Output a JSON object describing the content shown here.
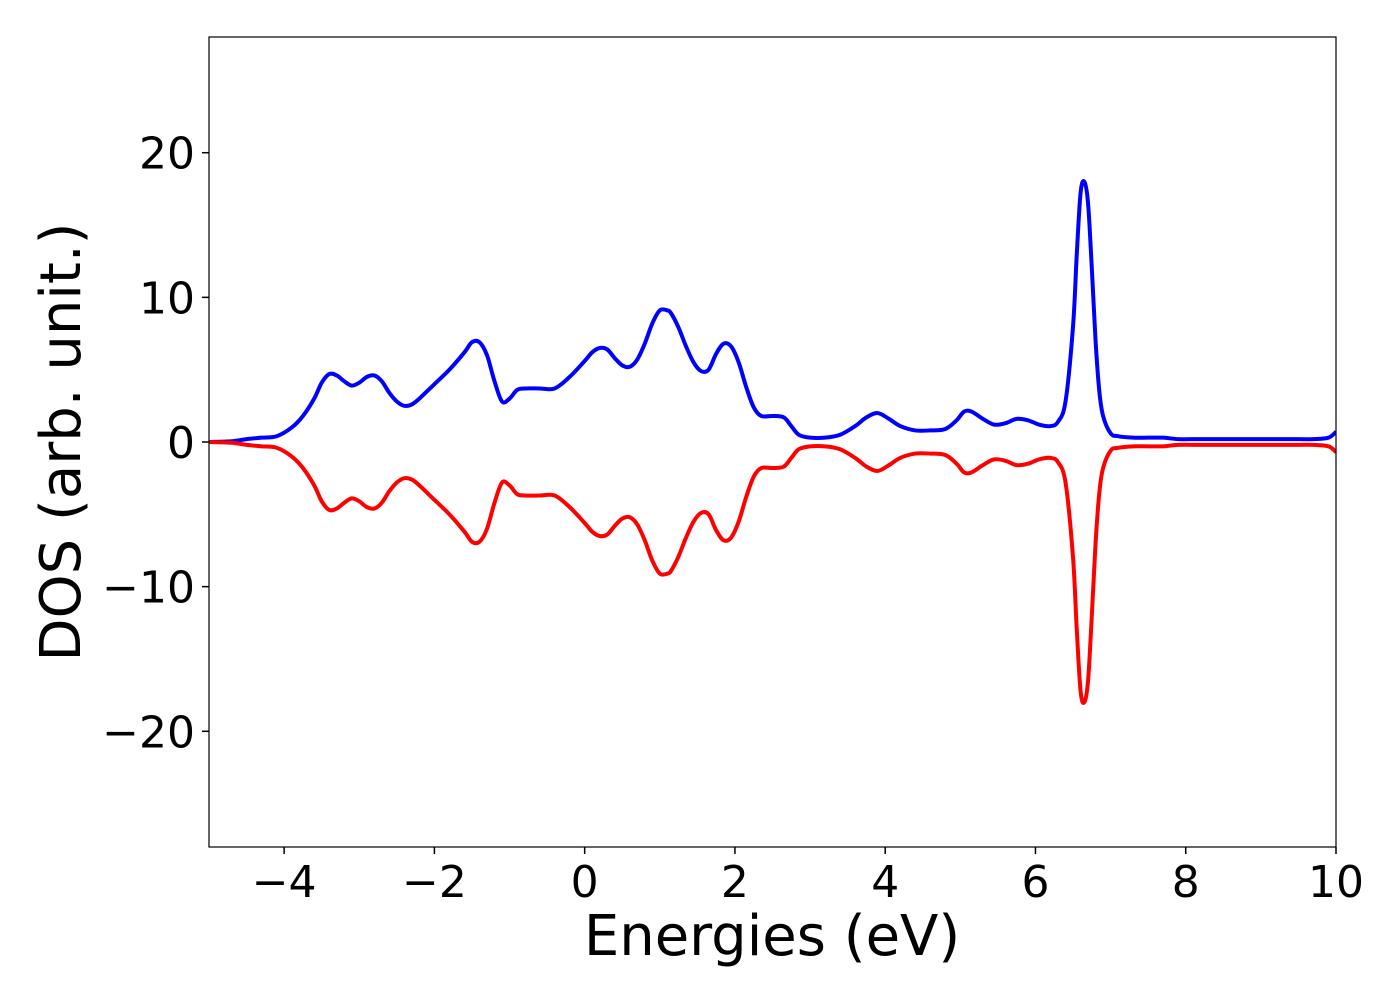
{
  "chart_data": {
    "type": "line",
    "xlabel": "Energies (eV)",
    "ylabel": "DOS (arb. unit.)",
    "xlim": [
      -5,
      10
    ],
    "ylim": [
      -28,
      28
    ],
    "xticks": [
      -4,
      -2,
      0,
      2,
      4,
      6,
      8,
      10
    ],
    "xtick_labels": [
      "−4",
      "−2",
      "0",
      "2",
      "4",
      "6",
      "8",
      "10"
    ],
    "yticks": [
      -20,
      -10,
      0,
      10,
      20
    ],
    "ytick_labels": [
      "−20",
      "−10",
      "0",
      "10",
      "20"
    ],
    "grid": false,
    "legend": false,
    "x": [
      -5.0,
      -4.7,
      -4.5,
      -4.3,
      -4.1,
      -3.9,
      -3.75,
      -3.6,
      -3.5,
      -3.4,
      -3.3,
      -3.2,
      -3.1,
      -3.0,
      -2.9,
      -2.8,
      -2.7,
      -2.6,
      -2.5,
      -2.4,
      -2.3,
      -2.2,
      -2.0,
      -1.8,
      -1.6,
      -1.5,
      -1.4,
      -1.3,
      -1.2,
      -1.1,
      -1.0,
      -0.9,
      -0.8,
      -0.6,
      -0.4,
      -0.2,
      0.0,
      0.1,
      0.2,
      0.3,
      0.4,
      0.5,
      0.6,
      0.7,
      0.8,
      0.9,
      1.0,
      1.1,
      1.15,
      1.25,
      1.35,
      1.45,
      1.55,
      1.65,
      1.75,
      1.85,
      1.95,
      2.05,
      2.15,
      2.25,
      2.35,
      2.5,
      2.65,
      2.75,
      2.85,
      3.0,
      3.2,
      3.4,
      3.6,
      3.75,
      3.9,
      4.05,
      4.2,
      4.4,
      4.6,
      4.8,
      4.95,
      5.05,
      5.15,
      5.3,
      5.45,
      5.6,
      5.75,
      5.9,
      6.05,
      6.2,
      6.3,
      6.4,
      6.5,
      6.55,
      6.6,
      6.65,
      6.7,
      6.75,
      6.8,
      6.85,
      6.9,
      7.0,
      7.1,
      7.3,
      7.5,
      7.7,
      7.9,
      8.2,
      8.6,
      9.0,
      9.4,
      9.7,
      9.9,
      10.0
    ],
    "series": [
      {
        "color": "#0000ff",
        "values": [
          0.0,
          0.05,
          0.2,
          0.3,
          0.4,
          1.0,
          1.8,
          3.0,
          4.1,
          4.7,
          4.6,
          4.2,
          3.9,
          4.1,
          4.5,
          4.6,
          4.2,
          3.4,
          2.8,
          2.5,
          2.6,
          3.0,
          4.0,
          5.0,
          6.2,
          6.9,
          6.9,
          6.0,
          4.2,
          2.8,
          3.0,
          3.6,
          3.7,
          3.7,
          3.7,
          4.5,
          5.6,
          6.2,
          6.5,
          6.4,
          5.8,
          5.3,
          5.2,
          5.7,
          6.8,
          8.2,
          9.1,
          9.1,
          8.9,
          7.9,
          6.6,
          5.5,
          4.9,
          5.0,
          6.1,
          6.8,
          6.6,
          5.5,
          3.8,
          2.4,
          1.8,
          1.8,
          1.7,
          1.1,
          0.5,
          0.3,
          0.3,
          0.5,
          1.1,
          1.7,
          2.0,
          1.6,
          1.1,
          0.8,
          0.8,
          0.9,
          1.5,
          2.1,
          2.1,
          1.6,
          1.2,
          1.3,
          1.6,
          1.5,
          1.2,
          1.1,
          1.4,
          2.8,
          8.0,
          13.0,
          17.2,
          18.0,
          16.5,
          12.0,
          7.0,
          3.5,
          1.8,
          0.6,
          0.4,
          0.3,
          0.3,
          0.3,
          0.2,
          0.2,
          0.2,
          0.2,
          0.2,
          0.2,
          0.3,
          0.7
        ]
      },
      {
        "color": "#ff0000",
        "values": [
          0.0,
          -0.05,
          -0.2,
          -0.3,
          -0.4,
          -1.0,
          -1.8,
          -3.0,
          -4.1,
          -4.7,
          -4.6,
          -4.2,
          -3.9,
          -4.1,
          -4.5,
          -4.6,
          -4.2,
          -3.4,
          -2.8,
          -2.5,
          -2.6,
          -3.0,
          -4.0,
          -5.0,
          -6.2,
          -6.9,
          -6.9,
          -6.0,
          -4.2,
          -2.8,
          -3.0,
          -3.6,
          -3.7,
          -3.7,
          -3.7,
          -4.5,
          -5.6,
          -6.2,
          -6.5,
          -6.4,
          -5.8,
          -5.3,
          -5.2,
          -5.7,
          -6.8,
          -8.2,
          -9.1,
          -9.1,
          -8.9,
          -7.9,
          -6.6,
          -5.5,
          -4.9,
          -5.0,
          -6.1,
          -6.8,
          -6.6,
          -5.5,
          -3.8,
          -2.4,
          -1.8,
          -1.8,
          -1.7,
          -1.1,
          -0.5,
          -0.3,
          -0.3,
          -0.5,
          -1.1,
          -1.7,
          -2.0,
          -1.6,
          -1.1,
          -0.8,
          -0.8,
          -0.9,
          -1.5,
          -2.1,
          -2.1,
          -1.6,
          -1.2,
          -1.3,
          -1.6,
          -1.5,
          -1.2,
          -1.1,
          -1.4,
          -2.8,
          -8.0,
          -13.0,
          -17.2,
          -18.0,
          -16.5,
          -12.0,
          -7.0,
          -3.5,
          -1.8,
          -0.6,
          -0.4,
          -0.3,
          -0.3,
          -0.3,
          -0.2,
          -0.2,
          -0.2,
          -0.2,
          -0.2,
          -0.2,
          -0.3,
          -0.7
        ]
      }
    ]
  }
}
